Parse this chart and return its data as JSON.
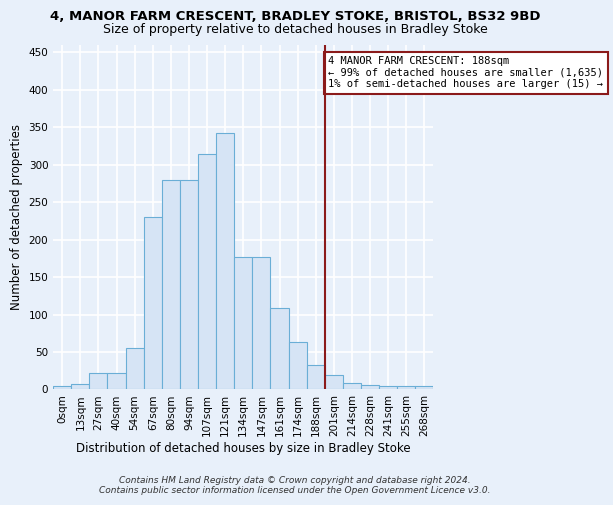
{
  "title1": "4, MANOR FARM CRESCENT, BRADLEY STOKE, BRISTOL, BS32 9BD",
  "title2": "Size of property relative to detached houses in Bradley Stoke",
  "xlabel": "Distribution of detached houses by size in Bradley Stoke",
  "ylabel": "Number of detached properties",
  "bar_labels": [
    "0sqm",
    "13sqm",
    "27sqm",
    "40sqm",
    "54sqm",
    "67sqm",
    "80sqm",
    "94sqm",
    "107sqm",
    "121sqm",
    "134sqm",
    "147sqm",
    "161sqm",
    "174sqm",
    "188sqm",
    "201sqm",
    "214sqm",
    "228sqm",
    "241sqm",
    "255sqm",
    "268sqm"
  ],
  "bar_values": [
    4,
    7,
    22,
    22,
    55,
    230,
    280,
    280,
    315,
    342,
    177,
    177,
    109,
    63,
    32,
    19,
    8,
    6,
    4,
    4,
    4
  ],
  "bar_color": "#d6e4f5",
  "bar_edge_color": "#6aaed6",
  "vline_label": "188sqm",
  "vline_color": "#8b1a1a",
  "annotation_text": "4 MANOR FARM CRESCENT: 188sqm\n← 99% of detached houses are smaller (1,635)\n1% of semi-detached houses are larger (15) →",
  "annotation_box_color": "#ffffff",
  "annotation_box_edge": "#8b1a1a",
  "footer": "Contains HM Land Registry data © Crown copyright and database right 2024.\nContains public sector information licensed under the Open Government Licence v3.0.",
  "ylim": [
    0,
    460
  ],
  "background_color": "#e8f0fa",
  "grid_color": "#ffffff",
  "title_fontsize": 9.5,
  "subtitle_fontsize": 9.0,
  "axis_label_fontsize": 8.5,
  "tick_fontsize": 7.5,
  "footer_fontsize": 6.5
}
